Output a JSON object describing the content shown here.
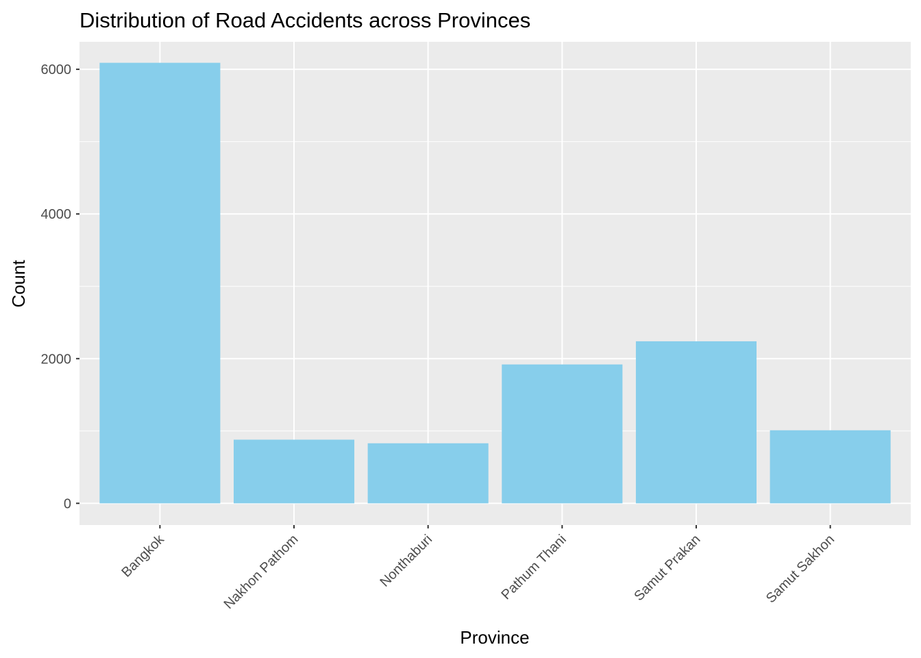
{
  "chart_data": {
    "type": "bar",
    "title": "Distribution of Road Accidents across Provinces",
    "xlabel": "Province",
    "ylabel": "Count",
    "categories": [
      "Bangkok",
      "Nakhon Pathom",
      "Nonthaburi",
      "Pathum Thani",
      "Samut Prakan",
      "Samut Sakhon"
    ],
    "values": [
      6090,
      880,
      830,
      1920,
      2240,
      1010
    ],
    "ylim": [
      -300,
      6380
    ],
    "yticks": [
      0,
      2000,
      4000,
      6000
    ],
    "ytick_labels": [
      "0",
      "2000",
      "4000",
      "6000"
    ],
    "grid": true,
    "legend": "none",
    "colors": {
      "bar": "#87CEEB",
      "panel": "#EBEBEB",
      "grid": "#FFFFFF",
      "tick": "#333333"
    }
  }
}
